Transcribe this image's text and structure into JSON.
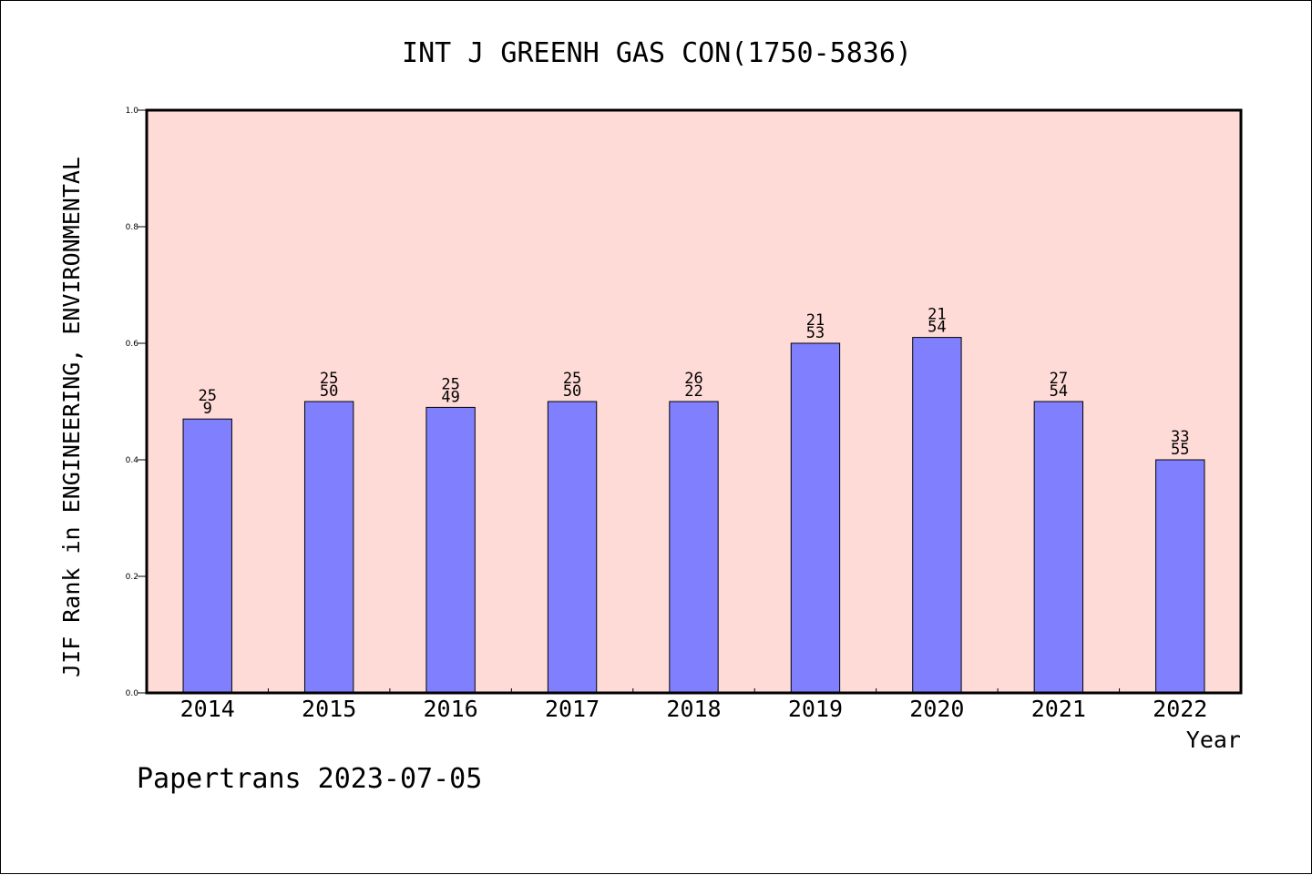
{
  "chart_data": {
    "type": "bar",
    "title": "INT J GREENH GAS CON(1750-5836)",
    "xlabel": "Year",
    "ylabel": "JIF Rank in ENGINEERING, ENVIRONMENTAL",
    "categories": [
      "2014",
      "2015",
      "2016",
      "2017",
      "2018",
      "2019",
      "2020",
      "2021",
      "2022"
    ],
    "values": [
      0.47,
      0.5,
      0.49,
      0.5,
      0.5,
      0.6,
      0.61,
      0.5,
      0.4
    ],
    "label_top": [
      "25",
      "25",
      "25",
      "25",
      "26",
      "21",
      "21",
      "27",
      "33"
    ],
    "label_bottom": [
      "9",
      "50",
      "49",
      "50",
      "22",
      "53",
      "54",
      "54",
      "55"
    ],
    "ylim": [
      0.0,
      1.0
    ],
    "yticks": [
      "0.0",
      "0.2",
      "0.4",
      "0.6",
      "0.8",
      "1.0"
    ],
    "grid": false,
    "legend": "none",
    "colors": {
      "plot_background": "#ffdbd8",
      "bar_fill": "#8080ff",
      "bar_edge": "#000000"
    }
  },
  "footer": {
    "credit": "Papertrans 2023-07-05"
  }
}
